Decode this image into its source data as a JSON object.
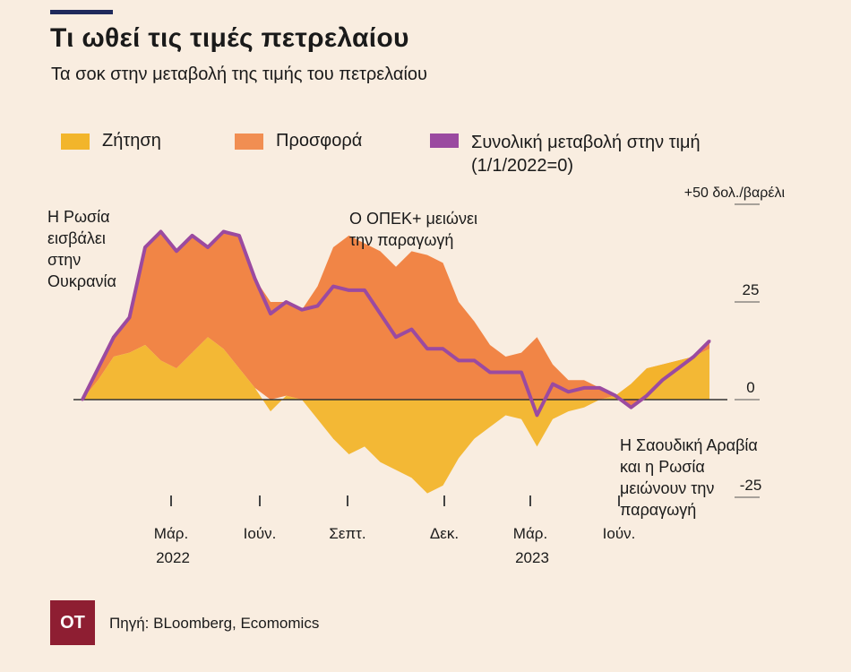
{
  "title": "Τι ωθεί τις τιμές πετρελαίου",
  "subtitle": "Τα σοκ στην μεταβολή της τιμής του πετρελαίου",
  "legend": {
    "demand": "Ζήτηση",
    "supply": "Προσφορά",
    "total_line1": "Συνολική μεταβολή στην τιμή",
    "total_line2": "(1/1/2022=0)"
  },
  "annotations": {
    "russia": [
      "Η Ρωσία",
      "εισβάλει",
      "στην",
      "Ουκρανία"
    ],
    "opec": [
      "Ο ΟΠΕΚ+ μειώνει",
      "την παραγωγή"
    ],
    "saudi": [
      "Η Σαουδική Αραβία",
      "και η Ρωσία",
      "μειώνουν την",
      "παραγωγή"
    ]
  },
  "footer": {
    "logo": "OT",
    "source": "Πηγή: BLoomberg, Ecomomics"
  },
  "colors": {
    "demand": "#f2b52b",
    "supply": "#f07c38",
    "total": "#9b4aa0",
    "zero_line": "#333333",
    "background": "#f9ede0"
  },
  "chart_data": {
    "type": "area",
    "y_unit_label": "+50 δολ./βαρέλι",
    "y_ticks": [
      "25",
      "0",
      "-25"
    ],
    "ylim": [
      -30,
      55
    ],
    "x_tick_labels": [
      {
        "month": "Μάρ.",
        "year": "2022"
      },
      {
        "month": "Ιούν.",
        "year": ""
      },
      {
        "month": "Σεπτ.",
        "year": ""
      },
      {
        "month": "Δεκ.",
        "year": ""
      },
      {
        "month": "Μάρ.",
        "year": "2023"
      },
      {
        "month": "Ιούν.",
        "year": ""
      }
    ],
    "x": [
      "2022-01",
      "2022-01b",
      "2022-02",
      "2022-02b",
      "2022-03",
      "2022-03b",
      "2022-04",
      "2022-04b",
      "2022-05",
      "2022-05b",
      "2022-06",
      "2022-06b",
      "2022-07",
      "2022-07b",
      "2022-08",
      "2022-08b",
      "2022-09",
      "2022-09b",
      "2022-10",
      "2022-10b",
      "2022-11",
      "2022-11b",
      "2022-12",
      "2022-12b",
      "2023-01",
      "2023-01b",
      "2023-02",
      "2023-02b",
      "2023-03",
      "2023-03b",
      "2023-04",
      "2023-04b",
      "2023-05",
      "2023-05b",
      "2023-06",
      "2023-06b",
      "2023-07",
      "2023-07b",
      "2023-08",
      "2023-08b",
      "2023-09"
    ],
    "series": [
      {
        "name": "Ζήτηση",
        "values": [
          0,
          5,
          11,
          12,
          14,
          10,
          8,
          12,
          16,
          13,
          8,
          3,
          -3,
          1,
          0,
          -5,
          -10,
          -14,
          -12,
          -16,
          -18,
          -20,
          -24,
          -22,
          -15,
          -10,
          -7,
          -4,
          -5,
          -12,
          -5,
          -3,
          -2,
          0,
          1,
          4,
          8,
          9,
          10,
          11,
          13
        ]
      },
      {
        "name": "Προσφορά",
        "values": [
          0,
          3,
          5,
          9,
          25,
          33,
          30,
          30,
          23,
          30,
          34,
          28,
          25,
          24,
          23,
          29,
          39,
          42,
          40,
          38,
          34,
          38,
          37,
          35,
          25,
          20,
          14,
          11,
          12,
          16,
          9,
          5,
          5,
          3,
          0,
          -6,
          -7,
          -4,
          -2,
          0,
          2
        ]
      },
      {
        "name": "Συνολική μεταβολή στην τιμή",
        "values": [
          0,
          8,
          16,
          21,
          39,
          43,
          38,
          42,
          39,
          43,
          42,
          31,
          22,
          25,
          23,
          24,
          29,
          28,
          28,
          22,
          16,
          18,
          13,
          13,
          10,
          10,
          7,
          7,
          7,
          -4,
          4,
          2,
          3,
          3,
          1,
          -2,
          1,
          5,
          8,
          11,
          15
        ]
      }
    ]
  }
}
